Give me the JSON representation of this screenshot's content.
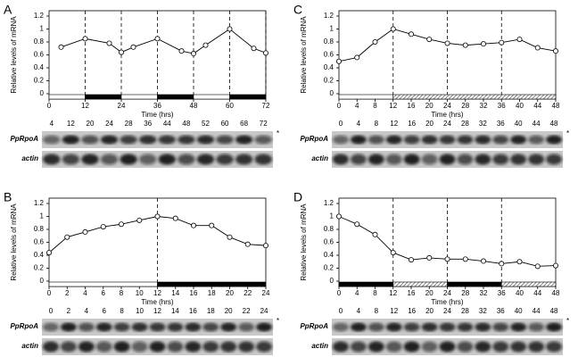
{
  "chart_data": [
    {
      "type": "line",
      "panel": "A",
      "y_label": "Relative levels of mRNA",
      "x_label": "Time (hrs)",
      "x": [
        4,
        12,
        20,
        24,
        28,
        36,
        44,
        48,
        52,
        60,
        68,
        72
      ],
      "values": [
        0.72,
        0.85,
        0.78,
        0.64,
        0.72,
        0.85,
        0.66,
        0.62,
        0.75,
        1.0,
        0.7,
        0.63
      ],
      "xlim": [
        0,
        72
      ],
      "xticks": [
        0,
        12,
        24,
        36,
        48,
        60,
        72
      ],
      "ylim": [
        0,
        1.2
      ],
      "yticks": [
        0,
        0.2,
        0.4,
        0.6,
        0.8,
        1,
        1.2
      ],
      "dashed_x": [
        12,
        24,
        36,
        48,
        60,
        72
      ],
      "phases": [
        {
          "from": 0,
          "to": 12,
          "fill": "white"
        },
        {
          "from": 12,
          "to": 24,
          "fill": "black"
        },
        {
          "from": 24,
          "to": 36,
          "fill": "white"
        },
        {
          "from": 36,
          "to": 48,
          "fill": "black"
        },
        {
          "from": 48,
          "to": 60,
          "fill": "white"
        },
        {
          "from": 60,
          "to": 72,
          "fill": "black"
        }
      ],
      "color": "#000000",
      "gel_rows": [
        "PpRpoA",
        "actin"
      ],
      "gel_note": "*"
    },
    {
      "type": "line",
      "panel": "B",
      "y_label": "Relative levels of mRNA",
      "x_label": "Time (hrs)",
      "x": [
        0,
        2,
        4,
        6,
        8,
        10,
        12,
        14,
        16,
        18,
        20,
        22,
        24
      ],
      "values": [
        0.44,
        0.68,
        0.76,
        0.84,
        0.88,
        0.94,
        1.0,
        0.97,
        0.86,
        0.86,
        0.68,
        0.57,
        0.55
      ],
      "xlim": [
        0,
        24
      ],
      "xticks": [
        0,
        2,
        4,
        6,
        8,
        10,
        12,
        14,
        16,
        18,
        20,
        22,
        24
      ],
      "ylim": [
        0,
        1.2
      ],
      "yticks": [
        0,
        0.2,
        0.4,
        0.6,
        0.8,
        1,
        1.2
      ],
      "dashed_x": [
        12
      ],
      "phases": [
        {
          "from": 0,
          "to": 12,
          "fill": "white"
        },
        {
          "from": 12,
          "to": 24,
          "fill": "black"
        }
      ],
      "color": "#000000",
      "gel_rows": [
        "PpRpoA",
        "actin"
      ],
      "gel_note": "*"
    },
    {
      "type": "line",
      "panel": "C",
      "y_label": "Relative levels of mRNA",
      "x_label": "Time (hrs)",
      "x": [
        0,
        4,
        8,
        12,
        16,
        20,
        24,
        28,
        32,
        36,
        40,
        44,
        48
      ],
      "values": [
        0.5,
        0.56,
        0.8,
        1.0,
        0.92,
        0.84,
        0.78,
        0.75,
        0.77,
        0.79,
        0.84,
        0.71,
        0.66
      ],
      "xlim": [
        0,
        48
      ],
      "xticks": [
        0,
        4,
        8,
        12,
        16,
        20,
        24,
        28,
        32,
        36,
        40,
        44,
        48
      ],
      "ylim": [
        0,
        1.2
      ],
      "yticks": [
        0,
        0.2,
        0.4,
        0.6,
        0.8,
        1,
        1.2
      ],
      "dashed_x": [
        12,
        24,
        36
      ],
      "phases": [
        {
          "from": 0,
          "to": 12,
          "fill": "white"
        },
        {
          "from": 12,
          "to": 48,
          "fill": "hatched"
        }
      ],
      "color": "#000000",
      "gel_rows": [
        "PpRpoA",
        "actin"
      ],
      "gel_note": "*"
    },
    {
      "type": "line",
      "panel": "D",
      "y_label": "Relative levels of mRNA",
      "x_label": "Time (hrs)",
      "x": [
        0,
        4,
        8,
        12,
        16,
        20,
        24,
        28,
        32,
        36,
        40,
        44,
        48
      ],
      "values": [
        1.0,
        0.88,
        0.72,
        0.44,
        0.33,
        0.36,
        0.34,
        0.34,
        0.31,
        0.27,
        0.3,
        0.23,
        0.24
      ],
      "xlim": [
        0,
        48
      ],
      "xticks": [
        0,
        4,
        8,
        12,
        16,
        20,
        24,
        28,
        32,
        36,
        40,
        44,
        48
      ],
      "ylim": [
        0,
        1.2
      ],
      "yticks": [
        0,
        0.2,
        0.4,
        0.6,
        0.8,
        1,
        1.2
      ],
      "dashed_x": [
        12,
        24,
        36
      ],
      "phases": [
        {
          "from": 0,
          "to": 12,
          "fill": "black"
        },
        {
          "from": 12,
          "to": 24,
          "fill": "hatched"
        },
        {
          "from": 24,
          "to": 36,
          "fill": "black"
        },
        {
          "from": 36,
          "to": 48,
          "fill": "hatched"
        }
      ],
      "color": "#000000",
      "gel_rows": [
        "PpRpoA",
        "actin"
      ],
      "gel_note": "*"
    }
  ]
}
